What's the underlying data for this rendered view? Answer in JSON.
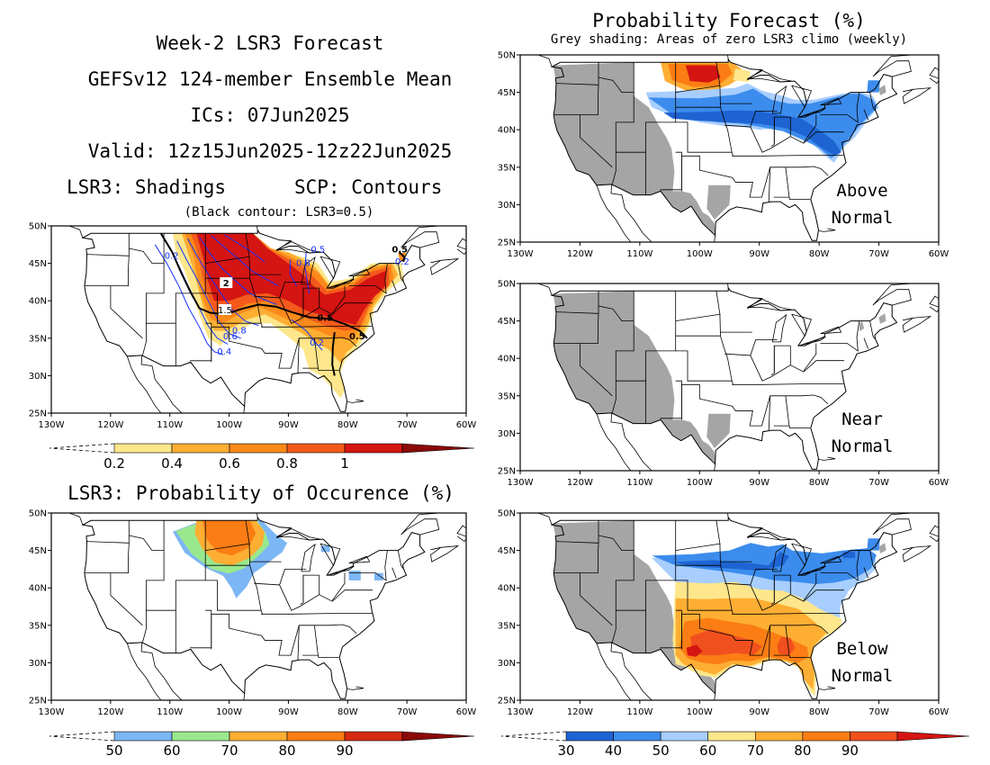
{
  "header": {
    "lines": [
      "Week-2 LSR3 Forecast",
      "GEFSv12 124-member Ensemble Mean",
      "ICs: 07Jun2025",
      "Valid: 12z15Jun2025-12z22Jun2025"
    ],
    "shadings_label": "LSR3: Shadings",
    "contours_label": "SCP: Contours",
    "contour_note": "(Black contour: LSR3=0.5)"
  },
  "right_header": {
    "title": "Probability Forecast (%)",
    "subtitle": "Grey shading: Areas of zero LSR3 climo (weekly)"
  },
  "occurrence_title": "LSR3: Probability of Occurence (%)",
  "axes": {
    "lat_labels": [
      "50N",
      "45N",
      "40N",
      "35N",
      "30N",
      "25N"
    ],
    "lon_labels": [
      "130W",
      "120W",
      "110W",
      "100W",
      "90W",
      "80W",
      "70W",
      "60W"
    ]
  },
  "panels": [
    {
      "id": "lsr3-mean",
      "label": []
    },
    {
      "id": "above",
      "label": [
        "Above",
        "Normal"
      ]
    },
    {
      "id": "near",
      "label": [
        "Near",
        "Normal"
      ]
    },
    {
      "id": "occurrence",
      "label": []
    },
    {
      "id": "below",
      "label": [
        "Below",
        "Normal"
      ]
    }
  ],
  "contour_labels": [
    "0.5",
    "0.2",
    "2",
    "1.5",
    "0.8",
    "0.6",
    "0.4",
    "0.2",
    "0.5",
    "0.5",
    "0.2",
    "0.5",
    "0.8"
  ],
  "colorbars": {
    "lsr3": {
      "labels": [
        "0.2",
        "0.4",
        "0.6",
        "0.8",
        "1"
      ],
      "colors": [
        "#fde68b",
        "#fdae33",
        "#fb8a1a",
        "#f45a1c",
        "#d41512",
        "#8a0a0a"
      ]
    },
    "occurrence": {
      "labels": [
        "50",
        "60",
        "70",
        "80",
        "90"
      ],
      "colors": [
        "#7cb6f4",
        "#9ae88e",
        "#fdae33",
        "#fb7d14",
        "#d42a10",
        "#8a0a0a"
      ]
    },
    "probability": {
      "labels": [
        "30",
        "40",
        "50",
        "60",
        "70",
        "80",
        "90"
      ],
      "colors": [
        "#1e64d2",
        "#3c8ced",
        "#a7ceff",
        "#fde68b",
        "#fdae33",
        "#fb7d14",
        "#f0501e",
        "#d41512"
      ]
    }
  },
  "colors": {
    "grey_climo": "#a5a5a5",
    "contour_blue": "#1432ff",
    "contour_black": "#000000"
  }
}
